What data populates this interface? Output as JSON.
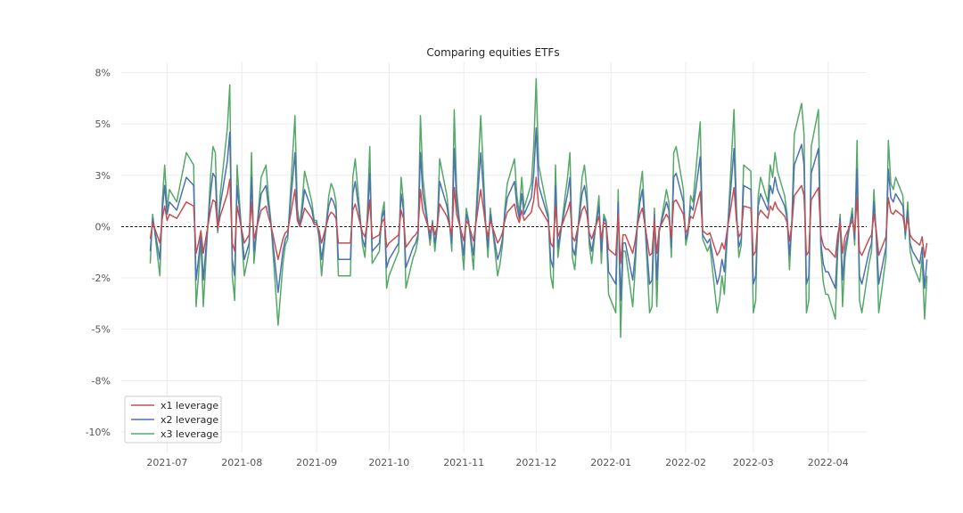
{
  "chart_data": {
    "type": "line",
    "title": "Comparing equities ETFs",
    "xlabel": "",
    "ylabel": "",
    "x_start": "2021-06-24",
    "x_ticks": [
      {
        "date": "2021-07-01",
        "label": "2021-07"
      },
      {
        "date": "2021-08-01",
        "label": "2021-08"
      },
      {
        "date": "2021-09-01",
        "label": "2021-09"
      },
      {
        "date": "2021-10-01",
        "label": "2021-10"
      },
      {
        "date": "2021-11-01",
        "label": "2021-11"
      },
      {
        "date": "2021-12-01",
        "label": "2021-12"
      },
      {
        "date": "2022-01-01",
        "label": "2022-01"
      },
      {
        "date": "2022-02-01",
        "label": "2022-02"
      },
      {
        "date": "2022-03-01",
        "label": "2022-03"
      },
      {
        "date": "2022-04-01",
        "label": "2022-04"
      }
    ],
    "xlim": [
      "2021-06-12",
      "2022-04-17"
    ],
    "ylim": [
      -11,
      8
    ],
    "y_ticks": [
      {
        "value": 7.5,
        "label": "8%"
      },
      {
        "value": 5.0,
        "label": "5%"
      },
      {
        "value": 2.5,
        "label": "3%"
      },
      {
        "value": 0.0,
        "label": "0%"
      },
      {
        "value": -2.5,
        "label": "-2%"
      },
      {
        "value": -5.0,
        "label": "-5%"
      },
      {
        "value": -7.5,
        "label": "-8%"
      },
      {
        "value": -10.0,
        "label": "-10%"
      }
    ],
    "grid": true,
    "zero_line": true,
    "legend_position": "bottom-left",
    "colors": {
      "x1": "#c44e52",
      "x2": "#4c72b0",
      "x3": "#55a868",
      "grid": "#ebebeb",
      "zero": "#000000"
    },
    "x1_returns": [
      -0.6,
      0.2,
      -0.8,
      0.4,
      1.0,
      0.3,
      0.6,
      0.4,
      0.6,
      0.8,
      1.0,
      1.2,
      1.0,
      -1.3,
      -0.8,
      -0.2,
      -1.3,
      0.8,
      1.3,
      1.2,
      -0.1,
      0.5,
      1.6,
      2.3,
      -0.8,
      -1.2,
      1.0,
      -0.8,
      -0.6,
      -0.4,
      1.2,
      -0.6,
      0.8,
      0.9,
      1.0,
      0.5,
      0.1,
      -1.6,
      -1.1,
      -0.6,
      -0.3,
      -0.2,
      1.8,
      0.3,
      0.0,
      0.4,
      0.9,
      0.4,
      0.1,
      0.1,
      -0.2,
      -0.8,
      0.5,
      0.7,
      0.6,
      0.4,
      -0.8,
      -0.8,
      -0.8,
      -0.8,
      0.8,
      1.1,
      -0.3,
      -0.5,
      0.2,
      1.3,
      -0.6,
      -0.4,
      0.2,
      0.4,
      -1.0,
      -0.8,
      -0.5,
      -0.4,
      0.8,
      0.4,
      -1.0,
      -0.5,
      -0.4,
      -0.2,
      1.8,
      0.8,
      -0.3,
      0.1,
      -0.4,
      0.0,
      1.1,
      0.5,
      0.1,
      -0.4,
      1.9,
      0.6,
      -0.7,
      0.3,
      0.1,
      -0.3,
      -0.7,
      1.8,
      1.0,
      0.1,
      -0.5,
      0.3,
      -0.8,
      -0.6,
      -0.3,
      0.3,
      0.7,
      1.1,
      0.5,
      0.2,
      0.8,
      0.3,
      0.7,
      1.3,
      2.4,
      1.0,
      0.8,
      0.2,
      -0.8,
      -1.0,
      1.0,
      -0.5,
      0.5,
      0.8,
      1.2,
      -0.5,
      -0.7,
      0.8,
      1.0,
      0.6,
      -0.3,
      -0.6,
      0.5,
      -0.6,
      0.2,
      0.1,
      -1.1,
      -1.4,
      0.6,
      -1.8,
      -0.4,
      -0.4,
      -1.3,
      -0.7,
      0.1,
      0.6,
      0.9,
      -1.4,
      -1.3,
      0.3,
      -1.3,
      -0.1,
      0.6,
      0.4,
      -0.5,
      1.2,
      1.3,
      0.6,
      -0.3,
      -0.1,
      0.5,
      0.4,
      1.7,
      -0.2,
      -0.3,
      -0.4,
      -0.3,
      -1.4,
      -1.2,
      -0.8,
      -1.1,
      -0.3,
      1.9,
      0.3,
      -0.5,
      -0.3,
      1.0,
      0.9,
      -1.4,
      -1.2,
      0.5,
      0.8,
      0.4,
      1.0,
      0.8,
      1.2,
      0.9,
      0.5,
      0.2,
      -0.7,
      0.1,
      1.5,
      2.0,
      1.5,
      -1.4,
      -1.2,
      1.3,
      1.9,
      -0.4,
      -0.9,
      -1.1,
      -1.1,
      -1.5,
      -0.4,
      0.2,
      -1.3,
      -0.5,
      0.3,
      -0.3,
      1.4,
      -1.2,
      -1.4,
      -0.6,
      -0.4,
      0.6,
      -0.2,
      -1.4,
      -0.5,
      1.4,
      0.7,
      0.6,
      0.8,
      0.5,
      -0.2,
      0.4,
      -0.4,
      -0.6,
      -0.9,
      -0.5,
      -1.5,
      -0.8
    ],
    "series": [
      {
        "name": "x1 leverage",
        "leverage": 1
      },
      {
        "name": "x2 leverage",
        "leverage": 2
      },
      {
        "name": "x3 leverage",
        "leverage": 3
      }
    ]
  }
}
